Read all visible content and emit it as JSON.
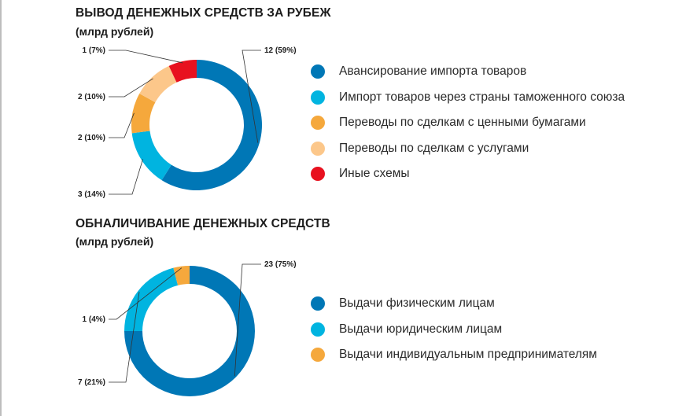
{
  "chart_data": [
    {
      "type": "pie",
      "title": "ВЫВОД ДЕНЕЖНЫХ СРЕДСТВ ЗА РУБЕЖ",
      "subtitle": "(млрд рублей)",
      "categories": [
        "Авансирование импорта товаров",
        "Импорт товаров через страны таможенного союза",
        "Переводы по сделкам с ценными бумагами",
        "Переводы по сделкам с услугами",
        "Иные схемы"
      ],
      "values": [
        12,
        3,
        2,
        2,
        1
      ],
      "data_labels": [
        "12 (59%)",
        "3 (14%)",
        "2 (10%)",
        "2 (10%)",
        "1 (7%)"
      ],
      "percent_shares": [
        59,
        14,
        10,
        10,
        7
      ],
      "colors": [
        "#0077b6",
        "#00b4e0",
        "#f5a83c",
        "#fcc78a",
        "#e8111f"
      ],
      "legend_position": "right"
    },
    {
      "type": "pie",
      "title": "ОБНАЛИЧИВАНИЕ ДЕНЕЖНЫХ СРЕДСТВ",
      "subtitle": "(млрд рублей)",
      "categories": [
        "Выдачи физическим лицам",
        "Выдачи юридическим лицам",
        "Выдачи индивидуальным предпринимателям"
      ],
      "values": [
        23,
        7,
        1
      ],
      "data_labels": [
        "23 (75%)",
        "7 (21%)",
        "1 (4%)"
      ],
      "percent_shares": [
        75,
        21,
        4
      ],
      "colors": [
        "#0077b6",
        "#00b4e0",
        "#f5a83c"
      ],
      "legend_position": "right"
    }
  ]
}
